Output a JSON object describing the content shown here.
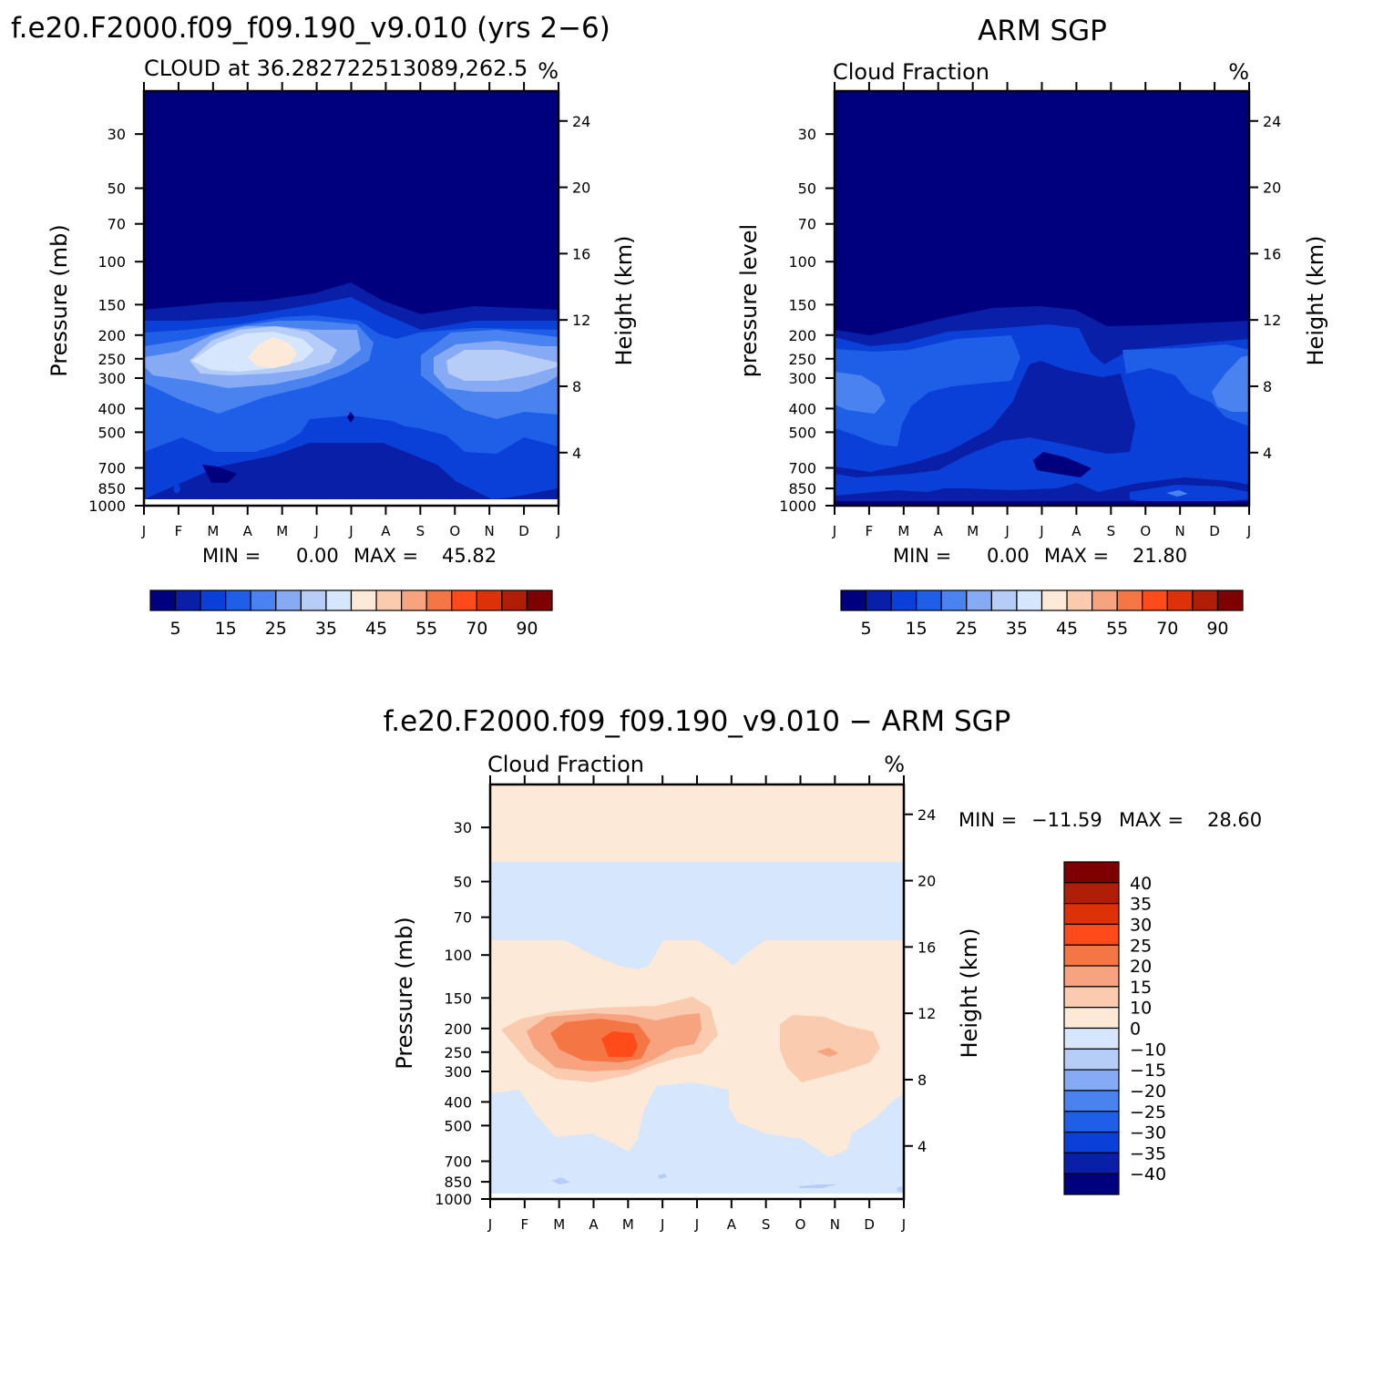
{
  "panels": {
    "model": {
      "figure_title": "f.e20.F2000.f09_f09.190_v9.010 (yrs 2−6)",
      "left_string": "CLOUD at 36.282722513089,262.5",
      "right_string": "%",
      "ylabel_left": "Pressure (mb)",
      "ylabel_right": "Height (km)",
      "min_label": "MIN =",
      "min_value": "0.00",
      "max_label": "MAX =",
      "max_value": "45.82"
    },
    "obs": {
      "figure_title": "ARM SGP",
      "left_string": "Cloud Fraction",
      "right_string": "%",
      "ylabel_left": "pressure level",
      "ylabel_right": "Height (km)",
      "min_label": "MIN =",
      "min_value": "0.00",
      "max_label": "MAX =",
      "max_value": "21.80"
    },
    "diff": {
      "figure_title": "f.e20.F2000.f09_f09.190_v9.010 − ARM SGP",
      "left_string": "Cloud Fraction",
      "right_string": "%",
      "ylabel_left": "Pressure (mb)",
      "ylabel_right": "Height (km)",
      "min_label": "MIN =",
      "min_value": "−11.59",
      "max_label": "MAX =",
      "max_value": "28.60"
    }
  },
  "axes": {
    "months": [
      "J",
      "F",
      "M",
      "A",
      "M",
      "J",
      "J",
      "A",
      "S",
      "O",
      "N",
      "D",
      "J"
    ],
    "pressure_ticks": [
      "30",
      "50",
      "70",
      "100",
      "150",
      "200",
      "250",
      "300",
      "400",
      "500",
      "700",
      "850",
      "1000"
    ],
    "height_ticks": [
      "24",
      "20",
      "16",
      "12",
      "8",
      "4"
    ]
  },
  "colorbars": {
    "cloud": {
      "labels": [
        "5",
        "15",
        "25",
        "35",
        "45",
        "55",
        "70",
        "90"
      ],
      "colors": [
        "#00007f",
        "#0a1fa8",
        "#0a3fd8",
        "#1f5fe8",
        "#4a82ef",
        "#86aaf4",
        "#b6cdf8",
        "#d6e6fc",
        "#fde9d8",
        "#fbcbb0",
        "#f7a380",
        "#f57645",
        "#ff4a1a",
        "#dd3208",
        "#b01e08",
        "#7f0000"
      ]
    },
    "diff": {
      "labels": [
        "40",
        "35",
        "30",
        "25",
        "20",
        "15",
        "10",
        "0",
        "−10",
        "−15",
        "−20",
        "−25",
        "−30",
        "−35",
        "−40"
      ],
      "colors": [
        "#7f0000",
        "#b01e08",
        "#dd3208",
        "#ff4a1a",
        "#f57645",
        "#f7a380",
        "#fbcbb0",
        "#fde9d8",
        "#d6e6fc",
        "#b6cdf8",
        "#86aaf4",
        "#4a82ef",
        "#1f5fe8",
        "#0a3fd8",
        "#0a1fa8",
        "#00007f"
      ]
    }
  },
  "chart_data": [
    {
      "type": "heatmap",
      "title": "f.e20.F2000.f09_f09.190_v9.010 (yrs 2−6)",
      "subtitle": "CLOUD at 36.282722513089,262.5",
      "units": "%",
      "x": [
        "J",
        "F",
        "M",
        "A",
        "M",
        "J",
        "J",
        "A",
        "S",
        "O",
        "N",
        "D",
        "J"
      ],
      "y": [
        30,
        50,
        100,
        150,
        200,
        250,
        300,
        400,
        500,
        700,
        850,
        1000
      ],
      "ylabel": "Pressure (mb)",
      "y2label": "Height (km)",
      "y_scale": "log",
      "values": [
        [
          0,
          0,
          0,
          0,
          0,
          0,
          0,
          0,
          0,
          0,
          0,
          0,
          0
        ],
        [
          0,
          0,
          0,
          0,
          0,
          0,
          0,
          0,
          0,
          0,
          0,
          0,
          0
        ],
        [
          0,
          0,
          0,
          0,
          0,
          0,
          0,
          0,
          0,
          0,
          0,
          0,
          0
        ],
        [
          4,
          4,
          5,
          7,
          8,
          10,
          12,
          8,
          5,
          6,
          6,
          5,
          4
        ],
        [
          10,
          14,
          18,
          24,
          30,
          26,
          18,
          12,
          12,
          16,
          16,
          14,
          12
        ],
        [
          18,
          22,
          30,
          38,
          44,
          36,
          24,
          16,
          16,
          26,
          30,
          28,
          22
        ],
        [
          22,
          26,
          34,
          36,
          34,
          28,
          20,
          14,
          18,
          26,
          32,
          32,
          26
        ],
        [
          14,
          16,
          16,
          14,
          12,
          10,
          8,
          6,
          8,
          12,
          14,
          14,
          14
        ],
        [
          10,
          12,
          12,
          10,
          9,
          7,
          6,
          6,
          6,
          8,
          10,
          12,
          12
        ],
        [
          8,
          8,
          6,
          8,
          8,
          4,
          2,
          2,
          2,
          6,
          8,
          8,
          8
        ],
        [
          6,
          4,
          2,
          4,
          4,
          2,
          2,
          2,
          2,
          4,
          4,
          6,
          6
        ],
        [
          2,
          2,
          2,
          2,
          2,
          2,
          2,
          2,
          2,
          2,
          2,
          2,
          2
        ]
      ]
    },
    {
      "type": "heatmap",
      "title": "ARM SGP",
      "subtitle": "Cloud Fraction",
      "units": "%",
      "x": [
        "J",
        "F",
        "M",
        "A",
        "M",
        "J",
        "J",
        "A",
        "S",
        "O",
        "N",
        "D",
        "J"
      ],
      "y": [
        30,
        50,
        100,
        150,
        200,
        250,
        300,
        400,
        500,
        700,
        850,
        1000
      ],
      "ylabel": "pressure level",
      "y2label": "Height (km)",
      "y_scale": "log",
      "values": [
        [
          0,
          0,
          0,
          0,
          0,
          0,
          0,
          0,
          0,
          0,
          0,
          0,
          0
        ],
        [
          0,
          0,
          0,
          0,
          0,
          0,
          0,
          0,
          0,
          0,
          0,
          0,
          0
        ],
        [
          0,
          0,
          0,
          0,
          0,
          0,
          0,
          0,
          0,
          0,
          0,
          0,
          0
        ],
        [
          0,
          0,
          0,
          0,
          0,
          0,
          0,
          0,
          0,
          0,
          0,
          0,
          0
        ],
        [
          2,
          2,
          2,
          3,
          4,
          6,
          6,
          5,
          3,
          2,
          2,
          2,
          2
        ],
        [
          8,
          8,
          10,
          12,
          14,
          16,
          16,
          12,
          8,
          6,
          6,
          6,
          8
        ],
        [
          14,
          14,
          16,
          16,
          16,
          18,
          16,
          10,
          8,
          10,
          12,
          14,
          14
        ],
        [
          18,
          16,
          16,
          14,
          12,
          12,
          10,
          8,
          8,
          10,
          12,
          14,
          16
        ],
        [
          14,
          14,
          12,
          12,
          10,
          10,
          8,
          6,
          6,
          8,
          10,
          12,
          12
        ],
        [
          8,
          8,
          8,
          8,
          8,
          6,
          4,
          4,
          4,
          6,
          8,
          8,
          8
        ],
        [
          6,
          6,
          8,
          8,
          8,
          8,
          6,
          6,
          6,
          10,
          12,
          10,
          8
        ],
        [
          4,
          4,
          4,
          4,
          4,
          4,
          4,
          4,
          4,
          6,
          8,
          6,
          4
        ]
      ]
    },
    {
      "type": "heatmap",
      "title": "f.e20.F2000.f09_f09.190_v9.010 − ARM SGP",
      "subtitle": "Cloud Fraction",
      "units": "%",
      "x": [
        "J",
        "F",
        "M",
        "A",
        "M",
        "J",
        "J",
        "A",
        "S",
        "O",
        "N",
        "D",
        "J"
      ],
      "y": [
        30,
        50,
        100,
        150,
        200,
        250,
        300,
        400,
        500,
        700,
        850,
        1000
      ],
      "ylabel": "Pressure (mb)",
      "y2label": "Height (km)",
      "y_scale": "log",
      "values": [
        [
          1,
          1,
          1,
          1,
          1,
          1,
          1,
          1,
          1,
          1,
          1,
          1,
          1
        ],
        [
          -1,
          -1,
          -1,
          -1,
          -1,
          -1,
          -1,
          -1,
          -1,
          -1,
          -1,
          -1,
          -1
        ],
        [
          1,
          1,
          1,
          1,
          -1,
          1,
          1,
          -1,
          1,
          1,
          1,
          1,
          1
        ],
        [
          4,
          4,
          5,
          7,
          8,
          10,
          12,
          8,
          5,
          6,
          6,
          5,
          4
        ],
        [
          8,
          12,
          16,
          20,
          26,
          20,
          12,
          7,
          9,
          14,
          14,
          12,
          10
        ],
        [
          10,
          14,
          20,
          26,
          30,
          20,
          8,
          4,
          8,
          20,
          24,
          22,
          14
        ],
        [
          8,
          12,
          18,
          20,
          18,
          10,
          4,
          4,
          10,
          16,
          20,
          18,
          12
        ],
        [
          -4,
          1,
          1,
          1,
          1,
          -2,
          -2,
          -2,
          1,
          2,
          2,
          1,
          -2
        ],
        [
          -4,
          -2,
          1,
          -2,
          -3,
          -3,
          -2,
          1,
          2,
          1,
          1,
          1,
          -4
        ],
        [
          -1,
          1,
          -2,
          1,
          1,
          -2,
          -2,
          -2,
          -2,
          1,
          1,
          -1,
          -1
        ],
        [
          -1,
          -2,
          -6,
          -4,
          -4,
          -6,
          -4,
          -4,
          -4,
          -6,
          -8,
          -4,
          -1
        ],
        [
          -2,
          -2,
          -2,
          -2,
          -2,
          -2,
          -2,
          -2,
          -2,
          -2,
          -4,
          -2,
          -2
        ]
      ]
    }
  ]
}
